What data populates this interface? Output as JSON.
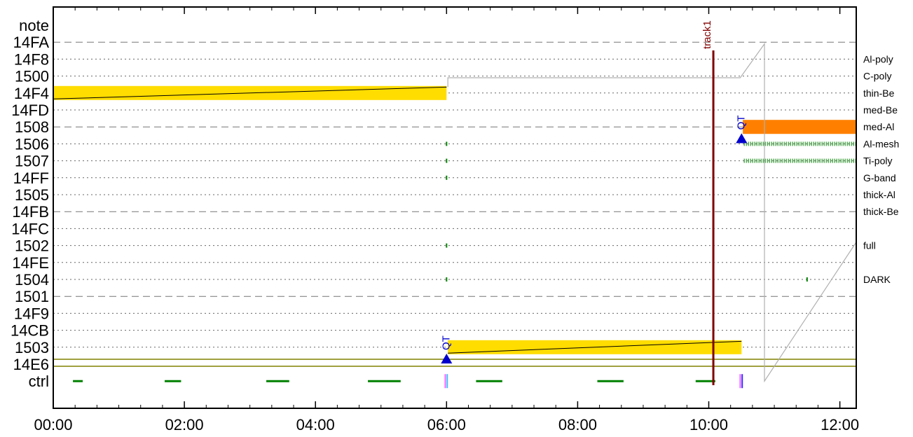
{
  "chart_data": {
    "type": "timeline",
    "x_unit": "hours",
    "xlim": [
      0.0,
      12.25
    ],
    "x_ticks": [
      {
        "value": 0,
        "label": "00:00"
      },
      {
        "value": 2,
        "label": "02:00"
      },
      {
        "value": 4,
        "label": "04:00"
      },
      {
        "value": 6,
        "label": "06:00"
      },
      {
        "value": 8,
        "label": "08:00"
      },
      {
        "value": 10,
        "label": "10:00"
      },
      {
        "value": 12,
        "label": "12:00"
      }
    ],
    "rows": [
      {
        "label": "note",
        "right": "",
        "line": "none"
      },
      {
        "label": "14FA",
        "right": "",
        "line": "dashed"
      },
      {
        "label": "14F8",
        "right": "Al-poly",
        "line": "dotted"
      },
      {
        "label": "1500",
        "right": "C-poly",
        "line": "dotted"
      },
      {
        "label": "14F4",
        "right": "thin-Be",
        "line": "dotted"
      },
      {
        "label": "14FD",
        "right": "med-Be",
        "line": "dotted"
      },
      {
        "label": "1508",
        "right": "med-Al",
        "line": "dashed"
      },
      {
        "label": "1506",
        "right": "Al-mesh",
        "line": "dotted"
      },
      {
        "label": "1507",
        "right": "Ti-poly",
        "line": "dotted"
      },
      {
        "label": "14FF",
        "right": "G-band",
        "line": "dotted"
      },
      {
        "label": "1505",
        "right": "thick-Al",
        "line": "dotted"
      },
      {
        "label": "14FB",
        "right": "thick-Be",
        "line": "dashed"
      },
      {
        "label": "14FC",
        "right": "",
        "line": "dotted"
      },
      {
        "label": "1502",
        "right": "full",
        "line": "dotted"
      },
      {
        "label": "14FE",
        "right": "",
        "line": "dotted"
      },
      {
        "label": "1504",
        "right": "DARK",
        "line": "dotted"
      },
      {
        "label": "1501",
        "right": "",
        "line": "dashed"
      },
      {
        "label": "14F9",
        "right": "",
        "line": "dotted"
      },
      {
        "label": "14CB",
        "right": "",
        "line": "dotted"
      },
      {
        "label": "1503",
        "right": "",
        "line": "dotted"
      },
      {
        "label": "14E6",
        "right": "",
        "line": "olive"
      },
      {
        "label": "ctrl",
        "right": "",
        "line": "none"
      }
    ],
    "bars": [
      {
        "row": "14F4",
        "start": 0.0,
        "end": 6.0,
        "color": "#ffdd00"
      },
      {
        "row": "1503",
        "start": 6.02,
        "end": 10.5,
        "color": "#ffdd00"
      },
      {
        "row": "1508",
        "start": 10.52,
        "end": 12.25,
        "color": "#ff8000"
      }
    ],
    "trend_lines": [
      {
        "from": {
          "x": 0.0,
          "row": "14F4",
          "offset": 0.35
        },
        "to": {
          "x": 6.0,
          "row": "14F4",
          "offset": -0.35
        }
      },
      {
        "from": {
          "x": 6.02,
          "row": "1503",
          "offset": 0.35
        },
        "to": {
          "x": 10.5,
          "row": "1503",
          "offset": -0.35
        }
      }
    ],
    "step_path": [
      {
        "x": 6.02,
        "row": "14F4",
        "offset": -0.35
      },
      {
        "x": 6.02,
        "row": "1500",
        "offset": 0.1
      },
      {
        "x": 10.48,
        "row": "1500",
        "offset": 0.1
      },
      {
        "x": 10.85,
        "row": "14F8",
        "offset": -0.9
      },
      {
        "x": 10.85,
        "row": "ctrl",
        "offset": 0.0
      },
      {
        "x": 12.25,
        "row": "1502",
        "offset": -0.2
      }
    ],
    "hatch_bands": [
      {
        "row": "1506",
        "start": 10.52,
        "end": 12.25
      },
      {
        "row": "1507",
        "start": 10.52,
        "end": 12.25
      }
    ],
    "tiny_marks": [
      {
        "row": "1506",
        "x": 6.0
      },
      {
        "row": "1507",
        "x": 6.0
      },
      {
        "row": "14FF",
        "x": 6.0
      },
      {
        "row": "1502",
        "x": 6.0
      },
      {
        "row": "1504",
        "x": 6.0
      },
      {
        "row": "1504",
        "x": 11.5
      }
    ],
    "ctrl_segments": [
      [
        0.3,
        0.45
      ],
      [
        1.7,
        1.95
      ],
      [
        3.25,
        3.6
      ],
      [
        4.8,
        5.3
      ],
      [
        6.45,
        6.85
      ],
      [
        8.3,
        8.7
      ],
      [
        9.8,
        10.1
      ]
    ],
    "ctrl_ticks": [
      {
        "x": 5.98,
        "color": "#ff60ff"
      },
      {
        "x": 6.01,
        "color": "#40c0ff"
      },
      {
        "x": 10.48,
        "color": "#ff60ff"
      },
      {
        "x": 10.51,
        "color": "#3030ff"
      }
    ],
    "markers": [
      {
        "x": 6.0,
        "row": "14E6",
        "label": "QT"
      },
      {
        "x": 10.5,
        "row": "1506",
        "label": "QT"
      }
    ],
    "vline": {
      "x": 10.07,
      "label": "track1",
      "color": "#800000"
    },
    "colors": {
      "yellow": "#ffdd00",
      "orange": "#ff8000",
      "green": "#008000",
      "olive": "#808000",
      "blue": "#0000cc",
      "maroon": "#800000"
    }
  }
}
